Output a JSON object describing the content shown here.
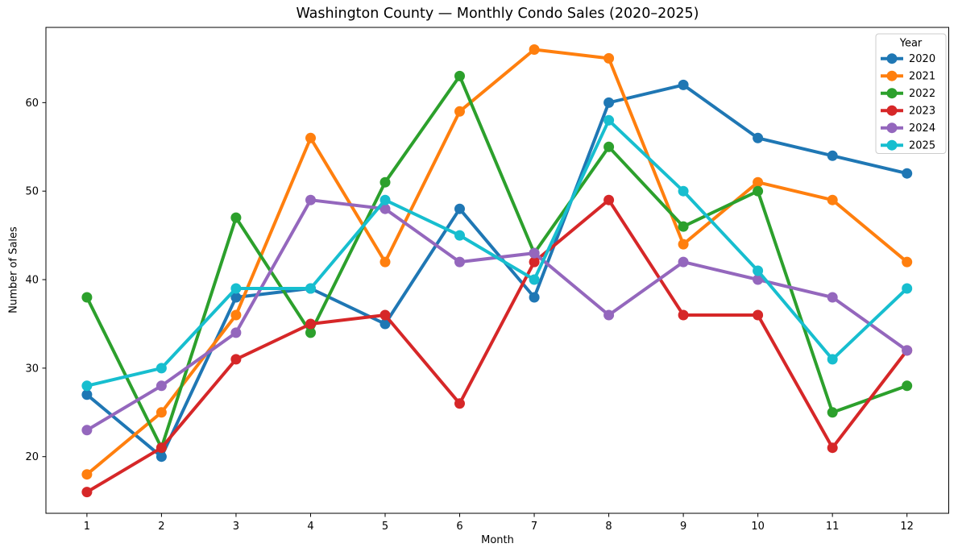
{
  "chart_data": {
    "type": "line",
    "title": "Washington County — Monthly Condo Sales (2020–2025)",
    "xlabel": "Month",
    "ylabel": "Number of Sales",
    "legend_title": "Year",
    "legend_position": "upper right",
    "grid": false,
    "x": [
      1,
      2,
      3,
      4,
      5,
      6,
      7,
      8,
      9,
      10,
      11,
      12
    ],
    "xticks": [
      "1",
      "2",
      "3",
      "4",
      "5",
      "6",
      "7",
      "8",
      "9",
      "10",
      "11",
      "12"
    ],
    "yticks": [
      "20",
      "30",
      "40",
      "50",
      "60"
    ],
    "ytick_values": [
      20,
      30,
      40,
      50,
      60
    ],
    "xlim": [
      0.45,
      12.56
    ],
    "ylim": [
      13.6,
      68.5
    ],
    "series": [
      {
        "name": "2020",
        "color": "#1f77b4",
        "values": [
          27,
          20,
          38,
          39,
          35,
          48,
          38,
          60,
          62,
          56,
          54,
          52
        ]
      },
      {
        "name": "2021",
        "color": "#ff7f0e",
        "values": [
          18,
          25,
          36,
          56,
          42,
          59,
          66,
          65,
          44,
          51,
          49,
          42
        ]
      },
      {
        "name": "2022",
        "color": "#2ca02c",
        "values": [
          38,
          21,
          47,
          34,
          51,
          63,
          43,
          55,
          46,
          50,
          25,
          28
        ]
      },
      {
        "name": "2023",
        "color": "#d62728",
        "values": [
          16,
          21,
          31,
          35,
          36,
          26,
          42,
          49,
          36,
          36,
          21,
          32
        ]
      },
      {
        "name": "2024",
        "color": "#9467bd",
        "values": [
          23,
          28,
          34,
          49,
          48,
          42,
          43,
          36,
          42,
          40,
          38,
          32
        ]
      },
      {
        "name": "2025",
        "color": "#17becf",
        "values": [
          28,
          30,
          39,
          39,
          49,
          45,
          40,
          58,
          50,
          41,
          31,
          39
        ]
      }
    ],
    "axis_color": "#000000",
    "legend_border_color": "#cccccc",
    "background_color": "#ffffff"
  }
}
